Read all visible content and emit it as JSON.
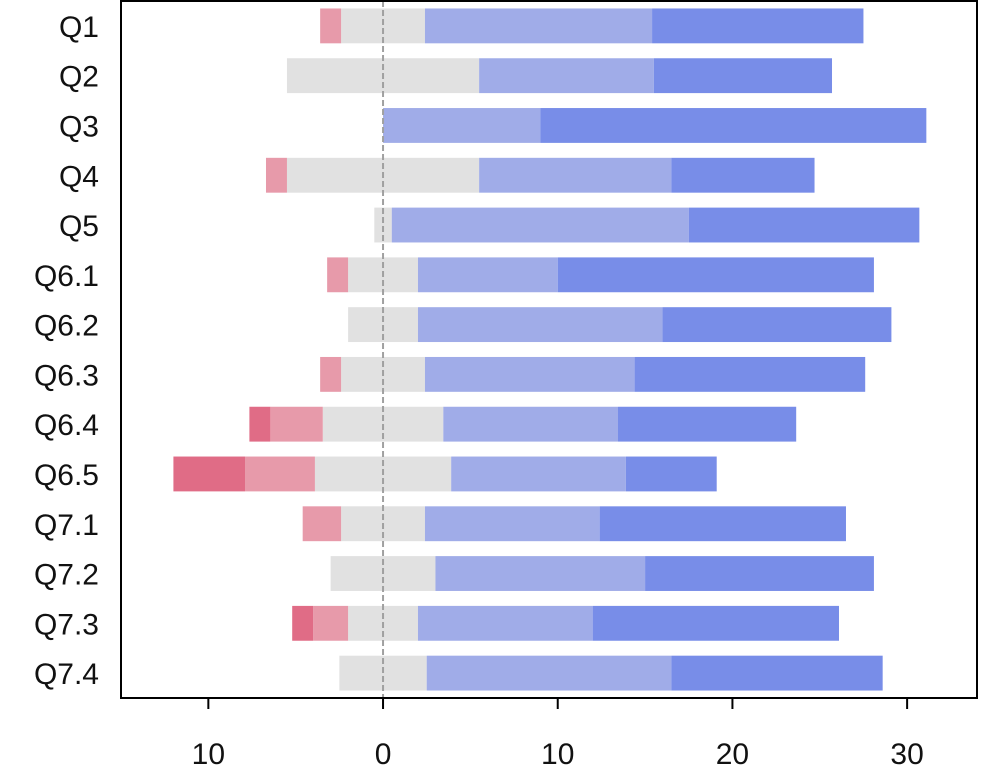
{
  "chart_data": {
    "type": "bar",
    "orientation": "horizontal",
    "stacked": "diverging",
    "title": "",
    "xlabel": "",
    "ylabel": "",
    "xlim": [
      -15,
      34
    ],
    "x_ticks": [
      -10,
      0,
      10,
      20,
      30
    ],
    "x_tick_labels": [
      "10",
      "0",
      "10",
      "20",
      "30"
    ],
    "grid": false,
    "legend": "none",
    "categories": [
      "Q1",
      "Q2",
      "Q3",
      "Q4",
      "Q5",
      "Q6.1",
      "Q6.2",
      "Q6.3",
      "Q6.4",
      "Q6.5",
      "Q7.1",
      "Q7.2",
      "Q7.3",
      "Q7.4"
    ],
    "series": [
      {
        "color": "#E06C86",
        "direction": "negative",
        "values": [
          0,
          0,
          0,
          0,
          0,
          0,
          0,
          0,
          1.2,
          4.1,
          0,
          0,
          1.2,
          0
        ]
      },
      {
        "color": "#E79AAA",
        "direction": "negative",
        "values": [
          1.2,
          0,
          0,
          1.2,
          0,
          1.2,
          0,
          1.2,
          3.0,
          4.0,
          2.2,
          0,
          2.0,
          0
        ]
      },
      {
        "color": "#E1E1E1",
        "direction": "neutral",
        "values": [
          4.8,
          11.0,
          0,
          11.0,
          1.0,
          4.0,
          4.0,
          4.8,
          6.9,
          7.8,
          4.8,
          6.0,
          4.0,
          5.0
        ]
      },
      {
        "color": "#A0ACE8",
        "direction": "positive",
        "values": [
          13.0,
          10.0,
          9.0,
          11.0,
          17.0,
          8.0,
          14.0,
          12.0,
          10.0,
          10.0,
          10.0,
          12.0,
          10.0,
          14.0
        ]
      },
      {
        "color": "#788DE8",
        "direction": "positive",
        "values": [
          12.1,
          10.2,
          22.1,
          8.2,
          13.2,
          18.1,
          13.1,
          13.2,
          10.2,
          5.2,
          14.1,
          13.1,
          14.1,
          12.1
        ]
      }
    ],
    "zero_line_color": "#A0A0A0"
  }
}
